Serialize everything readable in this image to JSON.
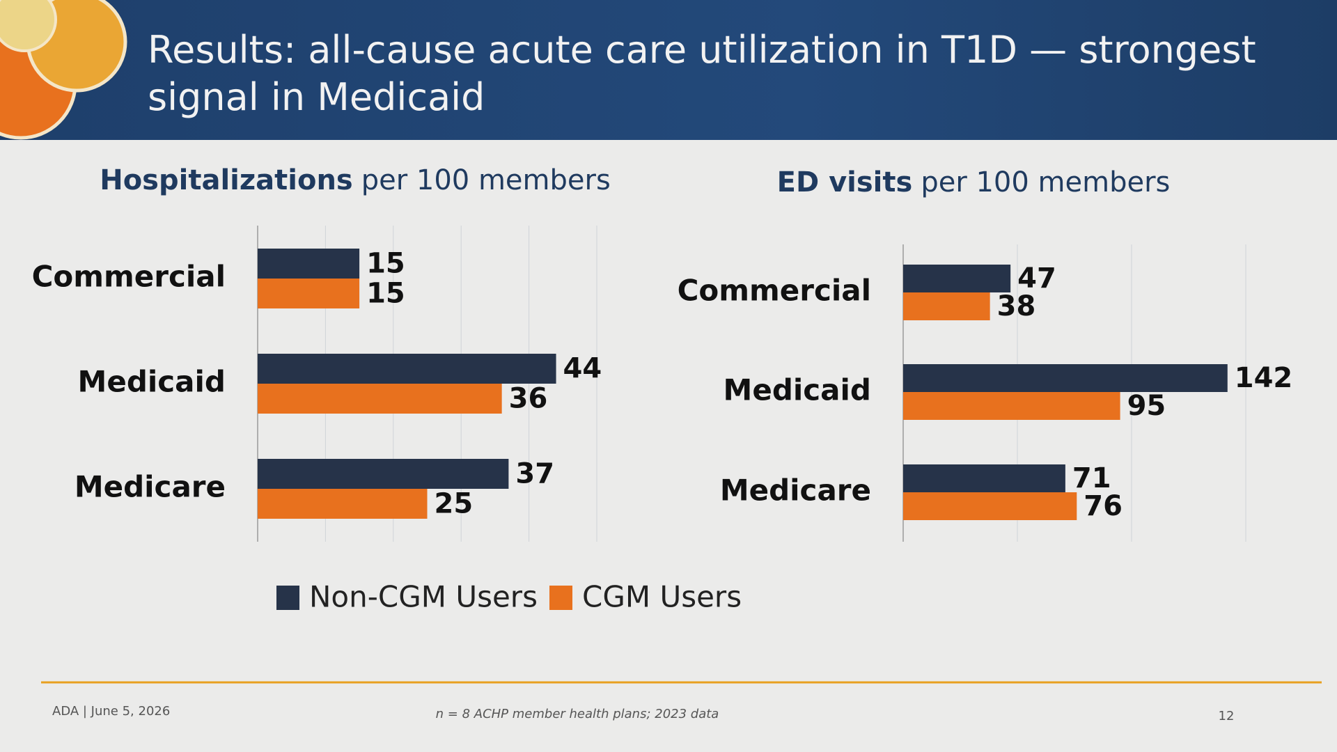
{
  "header": {
    "title": "Results: all-cause acute care utilization in T1D — strongest signal in Medicaid"
  },
  "chart_data": [
    {
      "type": "hbar",
      "title_bold": "Hospitalizations",
      "title": "per 100 members",
      "categories": [
        "Commercial",
        "Medicaid",
        "Medicare"
      ],
      "series": [
        {
          "name": "Non-CGM Users",
          "color": "#263349",
          "values": [
            15,
            44,
            37
          ]
        },
        {
          "name": "CGM Users",
          "color": "#e8711e",
          "values": [
            15,
            36,
            25
          ]
        }
      ],
      "xlim": [
        0,
        50
      ],
      "xticks": [
        0,
        10,
        20,
        30,
        40,
        50
      ],
      "grid": true
    },
    {
      "type": "hbar",
      "title_bold": "ED visits",
      "title": "per 100 members",
      "categories": [
        "Commercial",
        "Medicaid",
        "Medicare"
      ],
      "series": [
        {
          "color": "#263349",
          "values": [
            47,
            142,
            71
          ]
        },
        {
          "color": "#e8711e",
          "values": [
            38,
            95,
            76
          ]
        }
      ],
      "xlim": [
        0,
        150
      ],
      "xticks": [
        0,
        50,
        100,
        150
      ],
      "grid": true
    }
  ],
  "footer": {
    "left": "ADA | June 5, 2026",
    "note": "n = 8 ACHP member health plans; 2023 data",
    "page": "12"
  }
}
